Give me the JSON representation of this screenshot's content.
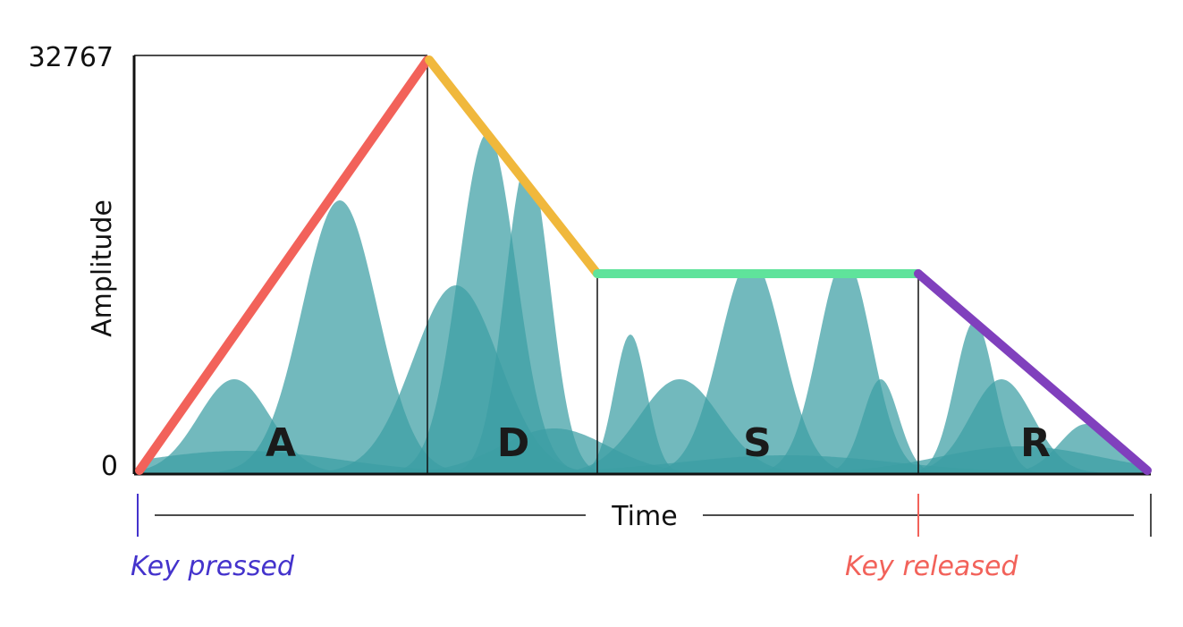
{
  "diagram": {
    "y_axis": {
      "label": "Amplitude",
      "max_label": "32767",
      "min_label": "0"
    },
    "x_axis": {
      "label": "Time"
    },
    "phases": [
      {
        "id": "attack",
        "letter": "A",
        "color": "#f2625a"
      },
      {
        "id": "decay",
        "letter": "D",
        "color": "#f0b83c"
      },
      {
        "id": "sustain",
        "letter": "S",
        "color": "#5fe39b"
      },
      {
        "id": "release",
        "letter": "R",
        "color": "#8040bd"
      }
    ],
    "events": {
      "key_pressed": {
        "label": "Key pressed",
        "color": "#4433cc"
      },
      "key_released": {
        "label": "Key released",
        "color": "#f2625a"
      }
    },
    "wave_color": "#3b9ea3"
  }
}
